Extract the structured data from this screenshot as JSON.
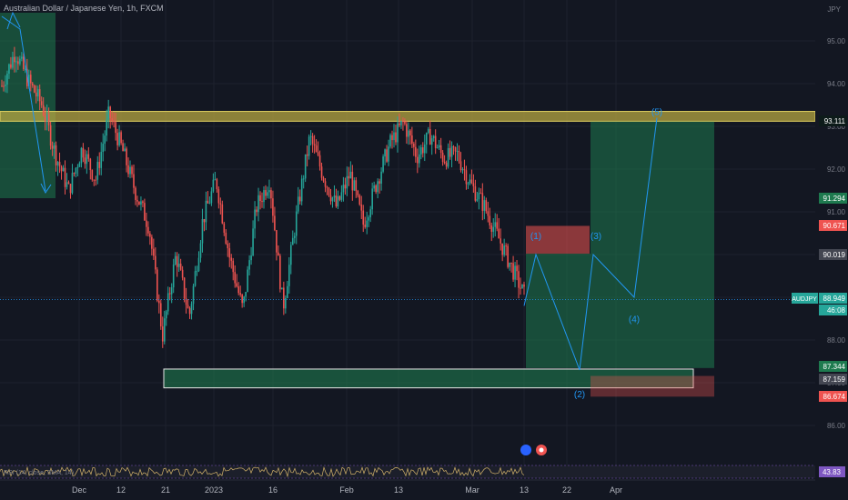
{
  "header": {
    "symbol_title": "Australian Dollar / Japanese Yen, 1h, FXCM",
    "currency": "JPY"
  },
  "rsi": {
    "label": "RSI (14, close, SMA, 14)",
    "value": "43.83"
  },
  "colors": {
    "background": "#131722",
    "up": "#26a69a",
    "down": "#ef5350",
    "wave": "#2962ff",
    "yellow_zone": "#b5a642",
    "green_zone": "#1e7a4f"
  },
  "chart_data": {
    "type": "candlestick",
    "title": "Australian Dollar / Japanese Yen, 1h, FXCM",
    "ylim": [
      85.6,
      95.6
    ],
    "y_ticks": [
      "95.000",
      "94.000",
      "93.000",
      "92.000",
      "91.000",
      "90.000",
      "89.000",
      "88.000",
      "87.000",
      "86.000"
    ],
    "x_ticks": [
      "Dec",
      "12",
      "21",
      "2023",
      "16",
      "Feb",
      "13",
      "Mar",
      "13",
      "22",
      "Apr"
    ],
    "price_labels": [
      {
        "text": "93.111",
        "value": 93.111,
        "kind": "tp"
      },
      {
        "text": "91.294",
        "value": 91.294,
        "kind": "last"
      },
      {
        "text": "90.671",
        "value": 90.671,
        "kind": "stop"
      },
      {
        "text": "90.019",
        "value": 90.019,
        "kind": "neutral"
      },
      {
        "text": "AUDJPY",
        "value": 88.949,
        "kind": "last"
      },
      {
        "text": "88.949",
        "value": 88.949,
        "kind": "last"
      },
      {
        "text": "46:08",
        "value": 88.949,
        "kind": "last"
      },
      {
        "text": "87.344",
        "value": 87.344,
        "kind": "last"
      },
      {
        "text": "87.159",
        "value": 87.159,
        "kind": "neutral"
      },
      {
        "text": "86.674",
        "value": 86.674,
        "kind": "stop"
      }
    ],
    "price_path": [
      [
        93.5,
        94.4
      ],
      [
        94.6,
        94.9
      ],
      [
        93.9,
        94.2
      ],
      [
        93.4,
        93.6
      ],
      [
        92.2,
        92.5
      ],
      [
        91.4,
        91.6
      ],
      [
        92.4,
        92.6
      ],
      [
        91.6,
        91.9
      ],
      [
        93.2,
        93.4
      ],
      [
        92.3,
        92.6
      ],
      [
        91.3,
        91.6
      ],
      [
        90.5,
        90.8
      ],
      [
        87.9,
        88.3
      ],
      [
        89.8,
        90.2
      ],
      [
        88.4,
        88.7
      ],
      [
        90.6,
        91.0
      ],
      [
        91.6,
        91.9
      ],
      [
        89.8,
        90.1
      ],
      [
        88.6,
        88.8
      ],
      [
        90.9,
        91.3
      ],
      [
        91.6,
        91.9
      ],
      [
        88.6,
        88.9
      ],
      [
        90.7,
        91.1
      ],
      [
        92.6,
        92.9
      ],
      [
        91.7,
        92.0
      ],
      [
        91.0,
        91.2
      ],
      [
        91.8,
        92.0
      ],
      [
        90.5,
        90.9
      ],
      [
        91.6,
        91.8
      ],
      [
        92.4,
        92.8
      ],
      [
        93.0,
        93.2
      ],
      [
        92.2,
        92.4
      ],
      [
        92.7,
        92.9
      ],
      [
        92.1,
        92.4
      ],
      [
        92.2,
        92.5
      ],
      [
        91.5,
        91.8
      ],
      [
        91.0,
        91.3
      ],
      [
        90.3,
        90.6
      ],
      [
        89.6,
        89.9
      ],
      [
        88.9,
        89.2
      ]
    ],
    "zones": [
      {
        "name": "resistance",
        "color": "yellow",
        "y_top": 93.35,
        "y_bottom": 93.12
      },
      {
        "name": "support",
        "color": "green",
        "y_top": 87.32,
        "y_bottom": 86.88
      },
      {
        "name": "target",
        "color": "green",
        "y_top": 93.111,
        "y_bottom": 87.344
      },
      {
        "name": "stop",
        "color": "red",
        "y_top": 90.671,
        "y_bottom": 90.019
      },
      {
        "name": "stop2",
        "color": "red",
        "y_top": 87.159,
        "y_bottom": 86.674
      }
    ],
    "elliott_waves": [
      {
        "label": "(1)",
        "value": 90.2
      },
      {
        "label": "(2)",
        "value": 86.9
      },
      {
        "label": "(3)",
        "value": 90.2
      },
      {
        "label": "(4)",
        "value": 88.7
      },
      {
        "label": "(5)",
        "value": 93.3
      }
    ],
    "horizontal_lines": [
      {
        "value": 88.949,
        "style": "dotted",
        "color": "#2196f3"
      }
    ]
  }
}
